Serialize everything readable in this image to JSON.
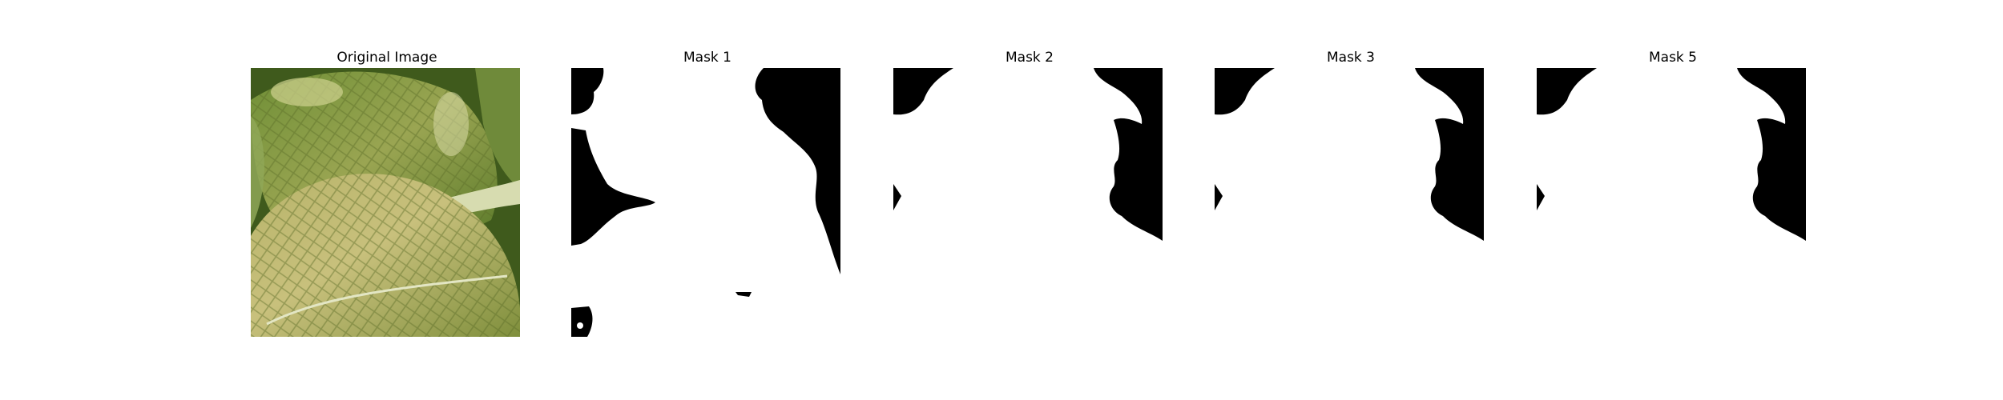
{
  "panels": [
    {
      "title": "Original Image",
      "kind": "photo"
    },
    {
      "title": "Mask 1",
      "kind": "mask"
    },
    {
      "title": "Mask 2",
      "kind": "mask"
    },
    {
      "title": "Mask 3",
      "kind": "mask"
    },
    {
      "title": "Mask 5",
      "kind": "mask"
    }
  ],
  "colors": {
    "background": "#ffffff",
    "mask_foreground": "#ffffff",
    "mask_background": "#000000",
    "leaf_light": "#c9c27a",
    "leaf_mid": "#8e9a46",
    "leaf_dark": "#4f6a22"
  }
}
